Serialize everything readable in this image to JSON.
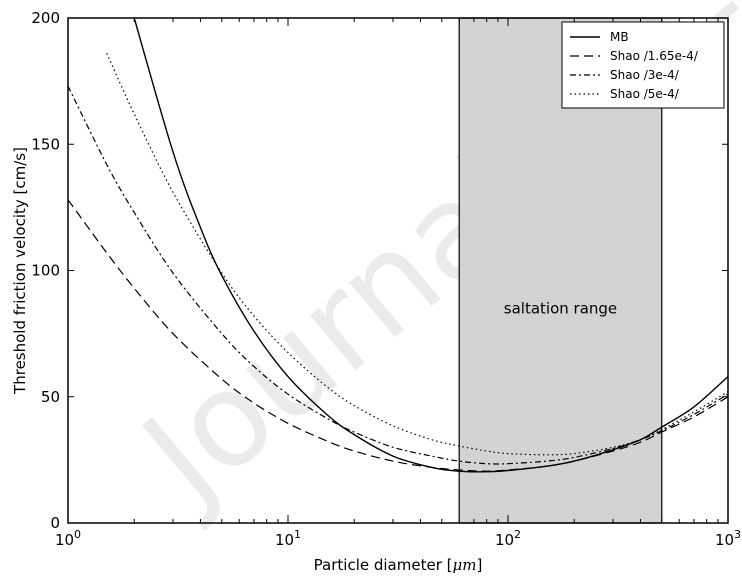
{
  "chart_data": {
    "type": "line",
    "xlabel": "Particle diameter [",
    "xlabel_unit": "μm",
    "xlabel_close": "]",
    "ylabel": "Threshold friction velocity [cm/s]",
    "xscale": "log",
    "xlim": [
      1,
      1000
    ],
    "ylim": [
      0,
      200
    ],
    "xtick_base": "10",
    "xtick_exponents": [
      "0",
      "1",
      "2",
      "3"
    ],
    "yticks": [
      "0",
      "50",
      "100",
      "150",
      "200"
    ],
    "grid": false,
    "legend_position": "top-right",
    "shaded_region": {
      "x": [
        60,
        500
      ],
      "color": "#d3d3d3",
      "label": "saltation range"
    },
    "watermark": "Journal Pre-proof",
    "series": [
      {
        "name": "MB",
        "style": "solid",
        "x": [
          2,
          3,
          4,
          5,
          7,
          10,
          15,
          20,
          30,
          45,
          60,
          80,
          100,
          150,
          200,
          300,
          400,
          500,
          700,
          1000
        ],
        "y": [
          200,
          147,
          117,
          98,
          76,
          58,
          43,
          35,
          26.5,
          22,
          20.5,
          20.3,
          20.8,
          22.5,
          24.5,
          29,
          33,
          38,
          46,
          58
        ]
      },
      {
        "name": "Shao /1.65e-4/",
        "style": "dashed",
        "x": [
          1,
          1.5,
          2,
          3,
          5,
          7,
          10,
          15,
          20,
          30,
          45,
          60,
          80,
          100,
          150,
          200,
          300,
          400,
          500,
          700,
          1000
        ],
        "y": [
          128,
          107,
          93,
          75,
          57,
          47.5,
          39.5,
          32.5,
          28.5,
          24.5,
          22,
          21,
          20.5,
          21,
          22.5,
          24.5,
          28.5,
          32,
          36,
          42,
          50
        ]
      },
      {
        "name": "Shao /3e-4/",
        "style": "dashdot",
        "x": [
          1,
          1.5,
          2,
          3,
          5,
          7,
          10,
          15,
          20,
          30,
          45,
          60,
          80,
          100,
          150,
          200,
          300,
          400,
          500,
          700,
          1000
        ],
        "y": [
          173,
          142,
          123,
          99,
          75,
          62,
          51,
          41.5,
          36,
          30,
          26.5,
          24.5,
          23.5,
          23.5,
          24.5,
          26,
          29.5,
          33,
          36.5,
          43,
          51
        ]
      },
      {
        "name": "Shao /5e-4/",
        "style": "dotted",
        "x": [
          1.5,
          2,
          3,
          5,
          7,
          10,
          15,
          20,
          30,
          45,
          60,
          80,
          100,
          150,
          200,
          300,
          400,
          500,
          700,
          1000
        ],
        "y": [
          186,
          162,
          131,
          99,
          82,
          67.5,
          54,
          46.5,
          38.5,
          33,
          30.5,
          28.5,
          27.5,
          27,
          27.5,
          30,
          33,
          37,
          44,
          52
        ]
      }
    ]
  }
}
